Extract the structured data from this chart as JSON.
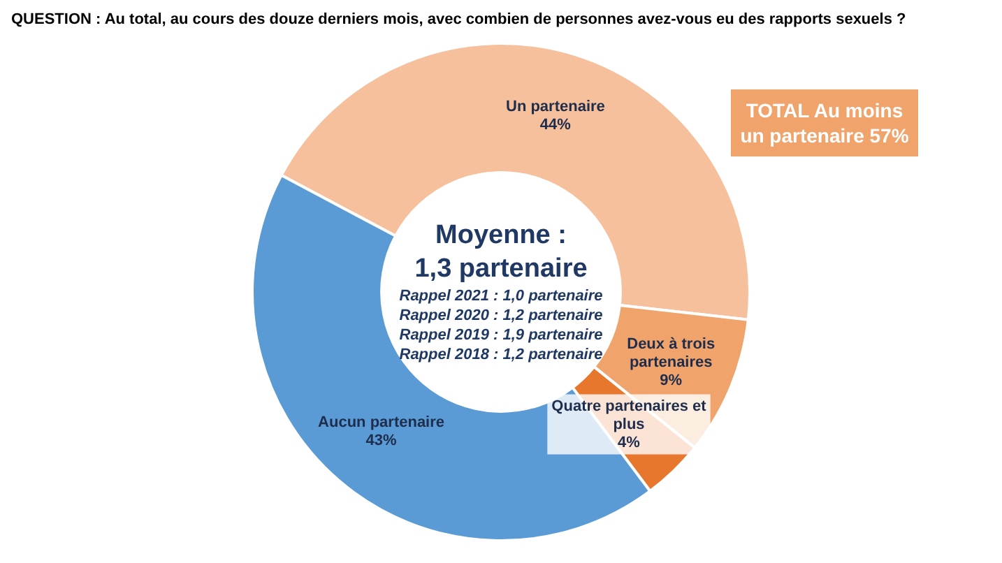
{
  "chart_data": {
    "type": "donut",
    "title": "QUESTION : Au total, au cours des douze derniers mois, avec combien de personnes avez-vous eu des rapports sexuels ?",
    "categories": [
      "Un partenaire",
      "Deux à trois partenaires",
      "Quatre partenaires et plus",
      "Aucun partenaire"
    ],
    "values": [
      44,
      9,
      4,
      43
    ],
    "colors": [
      "#f5c09b",
      "#f0a46c",
      "#e8772e",
      "#5b9bd5"
    ],
    "value_labels": [
      "44%",
      "9%",
      "4%",
      "43%"
    ],
    "legend": false,
    "annotations": [
      "TOTAL Au moins un partenaire 57%",
      "Moyenne :",
      "1,3 partenaire",
      "Rappel 2021 : 1,0 partenaire",
      "Rappel 2020 : 1,2 partenaire",
      "Rappel 2019 : 1,9 partenaire",
      "Rappel 2018 : 1,2 partenaire"
    ]
  }
}
